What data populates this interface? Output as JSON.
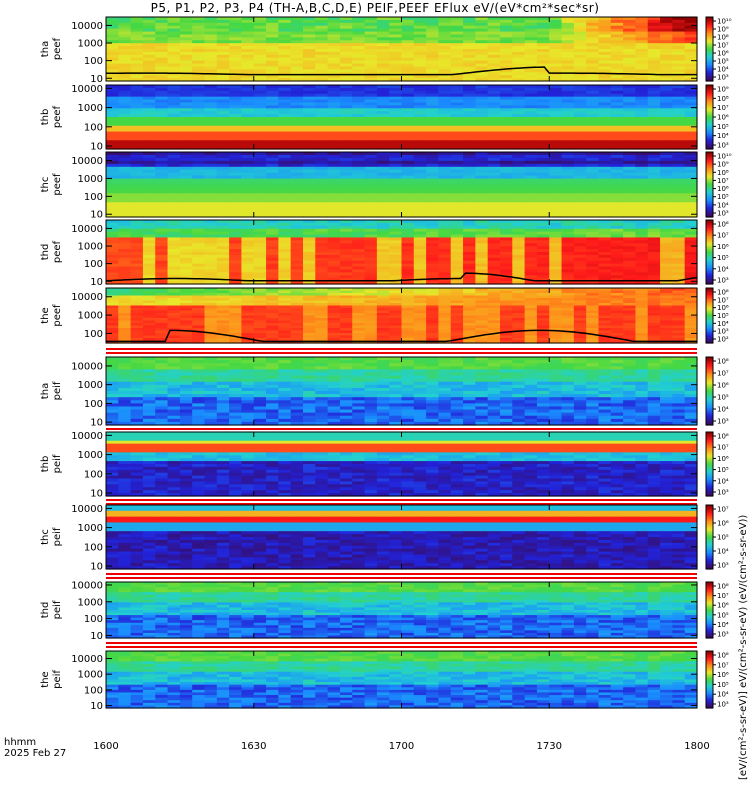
{
  "title": "P5, P1, P2, P3, P4 (TH-A,B,C,D,E) PEIF,PEEF EFlux eV/(eV*cm²*sec*sr)",
  "footer": {
    "unit_label": "hhmm",
    "date_label": "2025 Feb 27"
  },
  "right_axis_label": "[eV/(cm²-s-sr-eV)]  eV/(cm²-s-sr-eV)  (eV/(cm²-s-sr-eV))",
  "colors": {
    "colormap": [
      "#3a0a5a",
      "#2222d8",
      "#1a8cff",
      "#22d0d0",
      "#44d844",
      "#e8e82a",
      "#ff8c1a",
      "#ff1a1a",
      "#8a0000"
    ],
    "separator_red": "#ee0000",
    "trace": "#000000"
  },
  "chart_data": {
    "type": "heatmap",
    "x_range": [
      "16:00",
      "18:00"
    ],
    "x_ticks": [
      "1600",
      "1630",
      "1700",
      "1730",
      "1800"
    ],
    "y_scale": "log",
    "panels": [
      {
        "label": "tha peef",
        "y_range": [
          7,
          30000
        ],
        "y_ticks": [
          "10",
          "100",
          "1000",
          "10000"
        ],
        "cb_ticks": [
          "10¹⁰",
          "10⁹",
          "10⁸",
          "10⁷",
          "10⁶",
          "10⁵",
          "10⁴",
          "10³"
        ],
        "style": "tha_e",
        "has_trace": true
      },
      {
        "label": "thb peef",
        "y_range": [
          7,
          15000
        ],
        "y_ticks": [
          "10",
          "100",
          "1000",
          "10000"
        ],
        "cb_ticks": [
          "10⁹",
          "10⁸",
          "10⁷",
          "10⁶",
          "10⁵",
          "10⁴",
          "10³"
        ],
        "style": "thb_e",
        "has_trace": false
      },
      {
        "label": "thc peef",
        "y_range": [
          7,
          30000
        ],
        "y_ticks": [
          "10",
          "100",
          "1000",
          "10000"
        ],
        "cb_ticks": [
          "10¹⁰",
          "10⁹",
          "10⁸",
          "10⁷",
          "10⁶",
          "10⁵",
          "10⁴",
          "10³"
        ],
        "style": "thc_e",
        "has_trace": false
      },
      {
        "label": "thd peef",
        "y_range": [
          7,
          30000
        ],
        "y_ticks": [
          "10",
          "100",
          "1000",
          "10000"
        ],
        "cb_ticks": [
          "10⁸",
          "10⁷",
          "10⁶",
          "10⁵",
          "10⁴",
          "10³"
        ],
        "style": "thd_e",
        "has_trace": true
      },
      {
        "label": "the peef",
        "y_range": [
          30,
          30000
        ],
        "y_ticks": [
          "100",
          "1000",
          "10000"
        ],
        "cb_ticks": [
          "10⁸",
          "10⁷",
          "10⁶",
          "10⁵",
          "10⁴",
          "10³",
          "10²"
        ],
        "style": "the_e",
        "has_trace": true
      },
      {
        "label": "tha peif",
        "y_range": [
          7,
          30000
        ],
        "y_ticks": [
          "10",
          "100",
          "1000",
          "10000"
        ],
        "cb_ticks": [
          "10⁸",
          "10⁷",
          "10⁶",
          "10⁵",
          "10⁴",
          "10³"
        ],
        "style": "ion",
        "has_trace": false
      },
      {
        "label": "thb peif",
        "y_range": [
          7,
          15000
        ],
        "y_ticks": [
          "10",
          "100",
          "1000",
          "10000"
        ],
        "cb_ticks": [
          "10⁸",
          "10⁷",
          "10⁶",
          "10⁵",
          "10⁴",
          "10³"
        ],
        "style": "thb_i",
        "has_trace": false
      },
      {
        "label": "thc peif",
        "y_range": [
          7,
          15000
        ],
        "y_ticks": [
          "10",
          "100",
          "1000",
          "10000"
        ],
        "cb_ticks": [
          "10⁷",
          "10⁶",
          "10⁵",
          "10⁴",
          "10³"
        ],
        "style": "thc_i",
        "has_trace": false
      },
      {
        "label": "thd peif",
        "y_range": [
          7,
          15000
        ],
        "y_ticks": [
          "10",
          "100",
          "1000",
          "10000"
        ],
        "cb_ticks": [
          "10⁸",
          "10⁷",
          "10⁶",
          "10⁵",
          "10⁴",
          "10³"
        ],
        "style": "ion",
        "has_trace": false
      },
      {
        "label": "the peif",
        "y_range": [
          7,
          30000
        ],
        "y_ticks": [
          "10",
          "100",
          "1000",
          "10000"
        ],
        "cb_ticks": [
          "10⁸",
          "10⁷",
          "10⁶",
          "10⁵",
          "10⁴",
          "10³"
        ],
        "style": "ion",
        "has_trace": false
      }
    ]
  }
}
